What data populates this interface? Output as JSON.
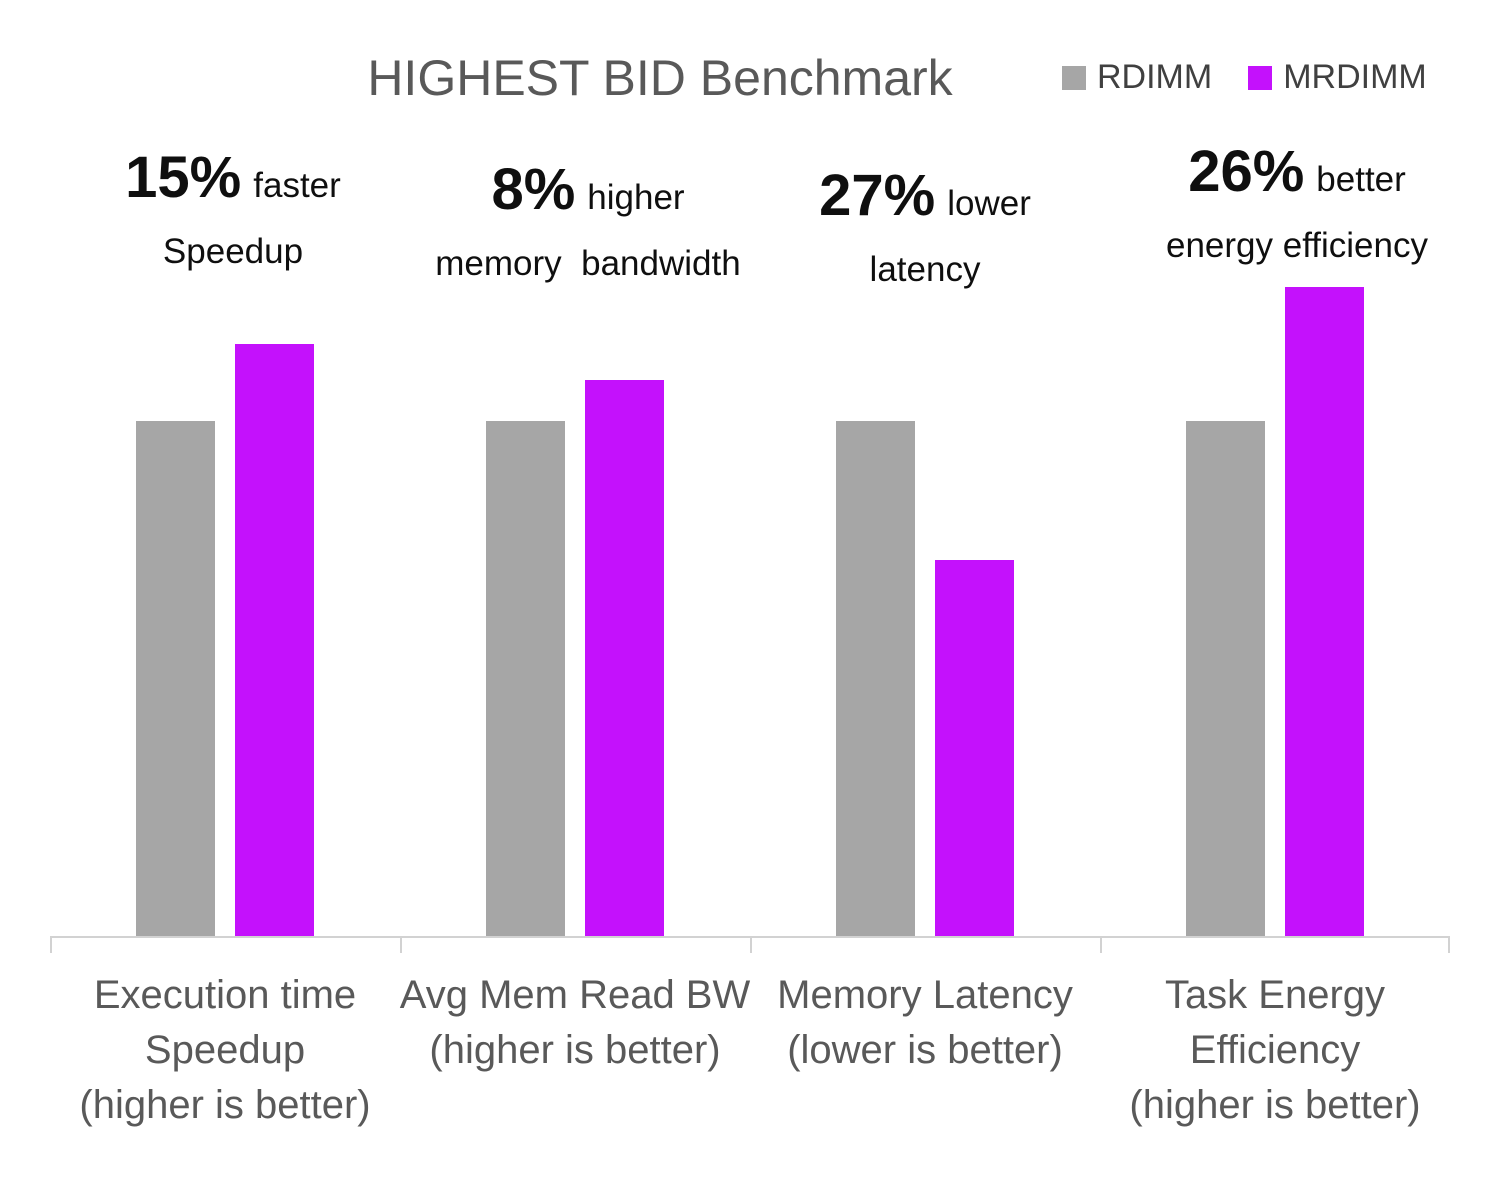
{
  "title": "HIGHEST BID Benchmark",
  "chart_data": {
    "type": "bar",
    "title": "HIGHEST BID Benchmark",
    "categories": [
      "Execution time Speedup (higher is better)",
      "Avg Mem Read BW (higher is better)",
      "Memory Latency (lower is better)",
      "Task Energy Efficiency (higher is better)"
    ],
    "series": [
      {
        "name": "RDIMM",
        "color": "#A6A6A6",
        "values": [
          1.0,
          1.0,
          1.0,
          1.0
        ]
      },
      {
        "name": "MRDIMM",
        "color": "#C411FC",
        "values": [
          1.15,
          1.08,
          0.73,
          1.26
        ]
      }
    ],
    "xlabel": "",
    "ylabel": "",
    "ylim": [
      0,
      1.58
    ],
    "grid": false,
    "value_axis_hidden": true,
    "legend_position": "top-right",
    "note": "Values normalized to RDIMM = 1.0; no value axis shown"
  },
  "annotations": [
    {
      "big": "15%",
      "small": "faster",
      "line2": "Speedup"
    },
    {
      "big": "8%",
      "small": "higher",
      "line2": "memory  bandwidth"
    },
    {
      "big": "27%",
      "small": "lower",
      "line2": "latency"
    },
    {
      "big": "26%",
      "small": "better",
      "line2": "energy efficiency"
    }
  ],
  "x_labels": [
    [
      "Execution time",
      "Speedup",
      "(higher is better)"
    ],
    [
      "Avg Mem Read BW",
      "(higher is better)"
    ],
    [
      "Memory Latency",
      "(lower is better)"
    ],
    [
      "Task Energy",
      "Efficiency",
      "(higher is better)"
    ]
  ],
  "colors": {
    "rdimm": "#A6A6A6",
    "mrdimm": "#C411FC",
    "title_text": "#595959",
    "legend_text": "#404040",
    "axis_line": "#D2D2D2",
    "annotation_text": "#0F0F0F"
  }
}
